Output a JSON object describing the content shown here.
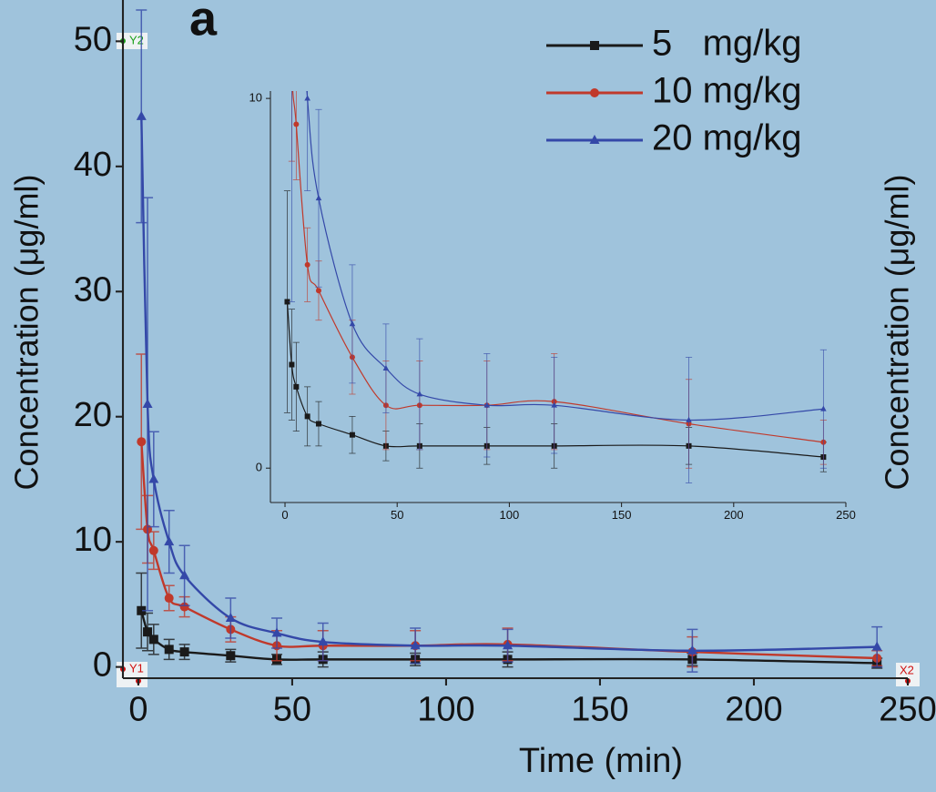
{
  "chart_data": [
    {
      "type": "line",
      "panel_label": "a",
      "xlabel": "Time (min)",
      "ylabel": "Concentration (μg/ml)",
      "x": [
        1,
        3,
        5,
        10,
        15,
        30,
        45,
        60,
        90,
        120,
        180,
        240
      ],
      "series": [
        {
          "name": "5   mg/kg",
          "color": "#1a1a1a",
          "marker": "square",
          "values": [
            4.5,
            2.8,
            2.2,
            1.4,
            1.2,
            0.9,
            0.6,
            0.6,
            0.6,
            0.6,
            0.6,
            0.3
          ],
          "errors": [
            3,
            1.5,
            1.2,
            0.8,
            0.6,
            0.5,
            0.4,
            0.6,
            0.5,
            0.6,
            0.5,
            0.4
          ]
        },
        {
          "name": "10 mg/kg",
          "color": "#c0392b",
          "marker": "circle",
          "values": [
            18,
            11,
            9.3,
            5.5,
            4.8,
            3.0,
            1.7,
            1.7,
            1.7,
            1.8,
            1.2,
            0.7
          ],
          "errors": [
            7,
            2.7,
            1.5,
            1.0,
            0.8,
            1.0,
            1.2,
            1.2,
            1.2,
            1.3,
            1.2,
            0.6
          ]
        },
        {
          "name": "20 mg/kg",
          "color": "#3448a8",
          "marker": "triangle",
          "values": [
            44,
            21,
            15,
            10,
            7.3,
            3.9,
            2.7,
            2.0,
            1.7,
            1.7,
            1.3,
            1.6
          ],
          "errors": [
            8.5,
            16.5,
            3.8,
            2.5,
            2.4,
            1.6,
            1.2,
            1.5,
            1.4,
            1.3,
            1.7,
            1.6
          ]
        }
      ],
      "xlim": [
        -5,
        250
      ],
      "ylim": [
        -0.9,
        53.3
      ],
      "xticks": [
        0,
        50,
        100,
        150,
        200,
        250
      ],
      "yticks": [
        0,
        10,
        20,
        30,
        40,
        50
      ],
      "legend": "upper right"
    },
    {
      "type": "line",
      "inset_of": 0,
      "xlim": [
        -6.5,
        250
      ],
      "ylim": [
        -0.93,
        10.2
      ],
      "xticks": [
        0,
        50,
        100,
        150,
        200,
        250
      ],
      "yticks": [
        0,
        10
      ]
    }
  ],
  "annotations": {
    "y1": "Y1",
    "y2": "Y2",
    "x2": "X2",
    "right_ylabel": "Concentration (μg/ml)"
  }
}
